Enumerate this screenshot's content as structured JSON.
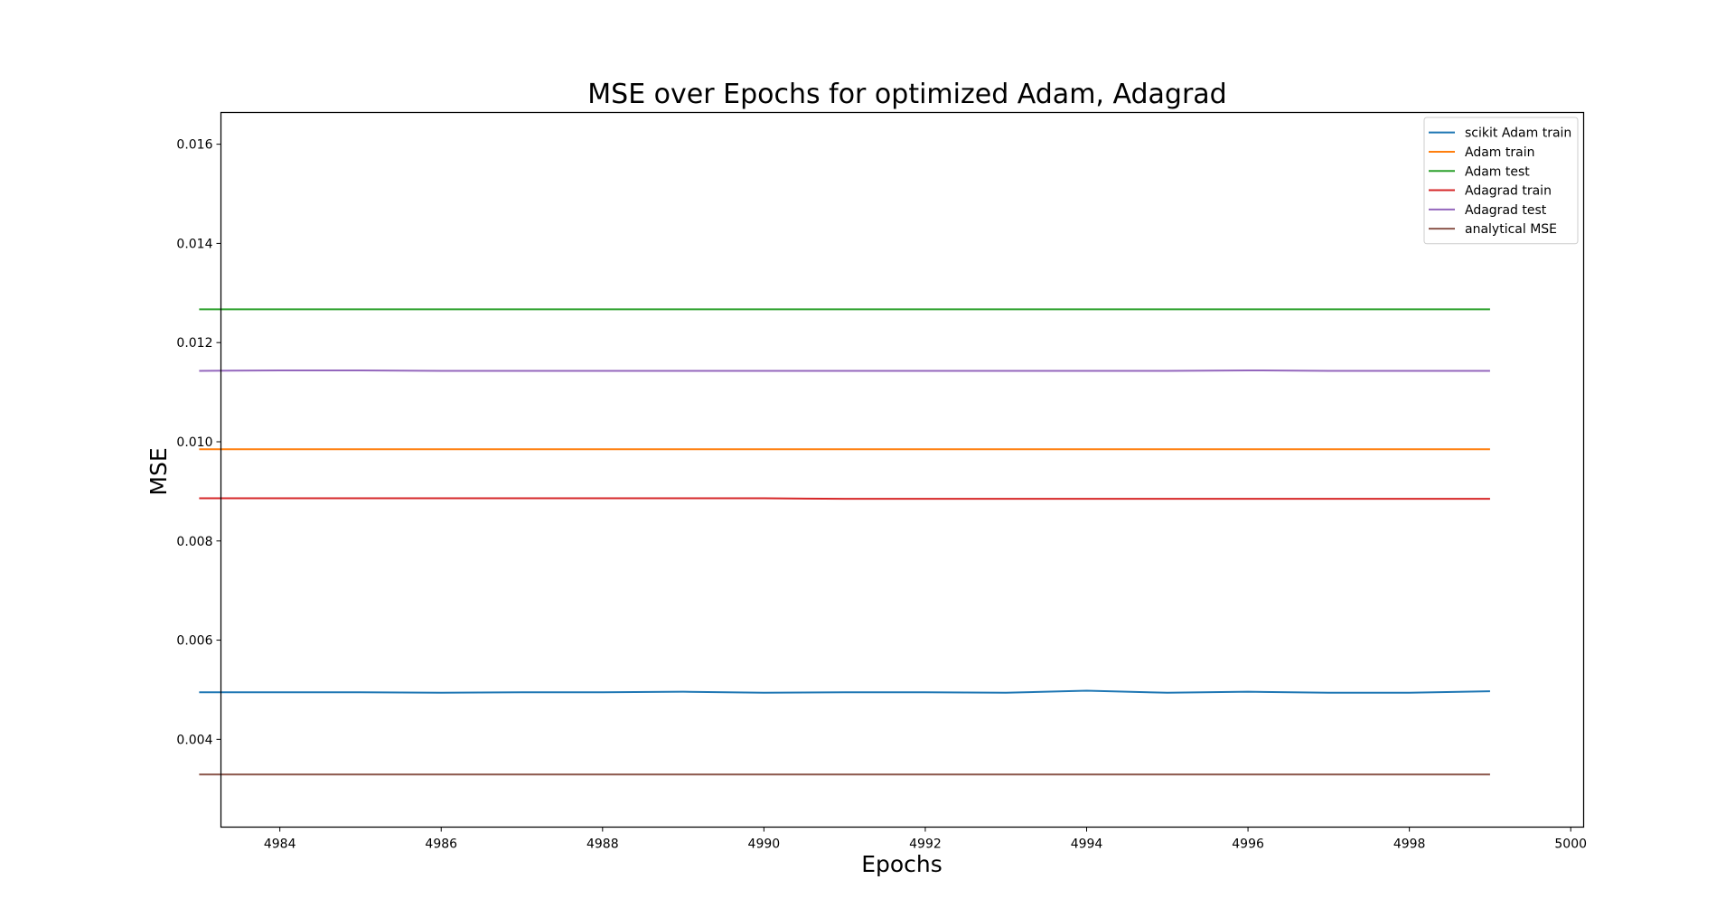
{
  "chart_data": {
    "type": "line",
    "title": "MSE over Epochs for optimized Adam, Adagrad",
    "xlabel": "Epochs",
    "ylabel": "MSE",
    "xlim": [
      4983.27,
      5000.16
    ],
    "ylim": [
      0.00223,
      0.01664
    ],
    "xticks": [
      "4984",
      "4986",
      "4988",
      "4990",
      "4992",
      "4994",
      "4996",
      "4998",
      "5000"
    ],
    "yticks": [
      "0.004",
      "0.006",
      "0.008",
      "0.010",
      "0.012",
      "0.014",
      "0.016"
    ],
    "grid": false,
    "legend_position": "top-right",
    "x": [
      4983,
      4984,
      4985,
      4986,
      4987,
      4988,
      4989,
      4990,
      4991,
      4992,
      4993,
      4994,
      4995,
      4996,
      4997,
      4998,
      4999
    ],
    "series": [
      {
        "name": "scikit Adam train",
        "color": "#1f77b4",
        "values": [
          0.00495,
          0.00495,
          0.00495,
          0.00494,
          0.00495,
          0.00495,
          0.00496,
          0.00494,
          0.00495,
          0.00495,
          0.00494,
          0.00498,
          0.00494,
          0.00496,
          0.00494,
          0.00494,
          0.00497
        ]
      },
      {
        "name": "Adam train",
        "color": "#ff7f0e",
        "values": [
          0.00985,
          0.00985,
          0.00985,
          0.00985,
          0.00985,
          0.00985,
          0.00985,
          0.00985,
          0.00985,
          0.00985,
          0.00985,
          0.00985,
          0.00985,
          0.00985,
          0.00985,
          0.00985,
          0.00985
        ]
      },
      {
        "name": "Adam test",
        "color": "#2ca02c",
        "values": [
          0.01267,
          0.01267,
          0.01267,
          0.01267,
          0.01267,
          0.01267,
          0.01267,
          0.01267,
          0.01267,
          0.01267,
          0.01267,
          0.01267,
          0.01267,
          0.01267,
          0.01267,
          0.01267,
          0.01267
        ]
      },
      {
        "name": "Adagrad train",
        "color": "#d62728",
        "values": [
          0.00886,
          0.00886,
          0.00886,
          0.00886,
          0.00886,
          0.00886,
          0.00886,
          0.00886,
          0.00885,
          0.00885,
          0.00885,
          0.00885,
          0.00885,
          0.00885,
          0.00885,
          0.00885,
          0.00885
        ]
      },
      {
        "name": "Adagrad test",
        "color": "#9467bd",
        "values": [
          0.01143,
          0.01144,
          0.01144,
          0.01143,
          0.01143,
          0.01143,
          0.01143,
          0.01143,
          0.01143,
          0.01143,
          0.01143,
          0.01143,
          0.01143,
          0.01144,
          0.01143,
          0.01143,
          0.01143
        ]
      },
      {
        "name": "analytical MSE",
        "color": "#8c564b",
        "values": [
          0.00329,
          0.00329,
          0.00329,
          0.00329,
          0.00329,
          0.00329,
          0.00329,
          0.00329,
          0.00329,
          0.00329,
          0.00329,
          0.00329,
          0.00329,
          0.00329,
          0.00329,
          0.00329,
          0.00329
        ]
      }
    ]
  }
}
